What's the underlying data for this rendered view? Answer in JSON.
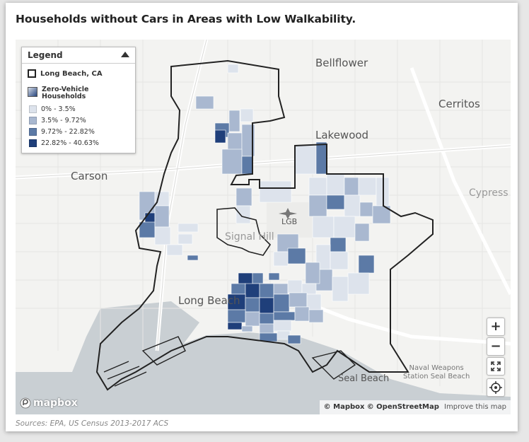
{
  "title": "Households without Cars in Areas with Low Walkability.",
  "legend": {
    "header": "Legend",
    "boundary_label": "Long Beach, CA",
    "zero_vehicle_title_1": "Zero-Vehicle",
    "zero_vehicle_title_2": "Households",
    "bins": [
      {
        "label": "0% - 3.5%",
        "color": "#dde3ec"
      },
      {
        "label": "3.5% - 9.72%",
        "color": "#a9b8d0"
      },
      {
        "label": "9.72% - 22.82%",
        "color": "#5c7aa6"
      },
      {
        "label": "22.82% - 40.63%",
        "color": "#1f3f7a"
      }
    ]
  },
  "places": {
    "bellflower": "Bellflower",
    "cerritos": "Cerritos",
    "lakewood": "Lakewood",
    "carson": "Carson",
    "cypress": "Cypress",
    "lgb": "LGB",
    "signal_hill": "Signal Hill",
    "long_beach": "Long Beach",
    "seal_beach": "Seal Beach",
    "naval_1": "Naval Weapons",
    "naval_2": "Station Seal Beach"
  },
  "controls": {
    "zoom_in": "+",
    "zoom_out": "−"
  },
  "mapbox_logo": "mapbox",
  "attribution": {
    "mapbox": "© Mapbox",
    "osm": "© OpenStreetMap",
    "improve": "Improve this map"
  },
  "sources": "Sources: EPA, US Census 2013-2017 ACS"
}
